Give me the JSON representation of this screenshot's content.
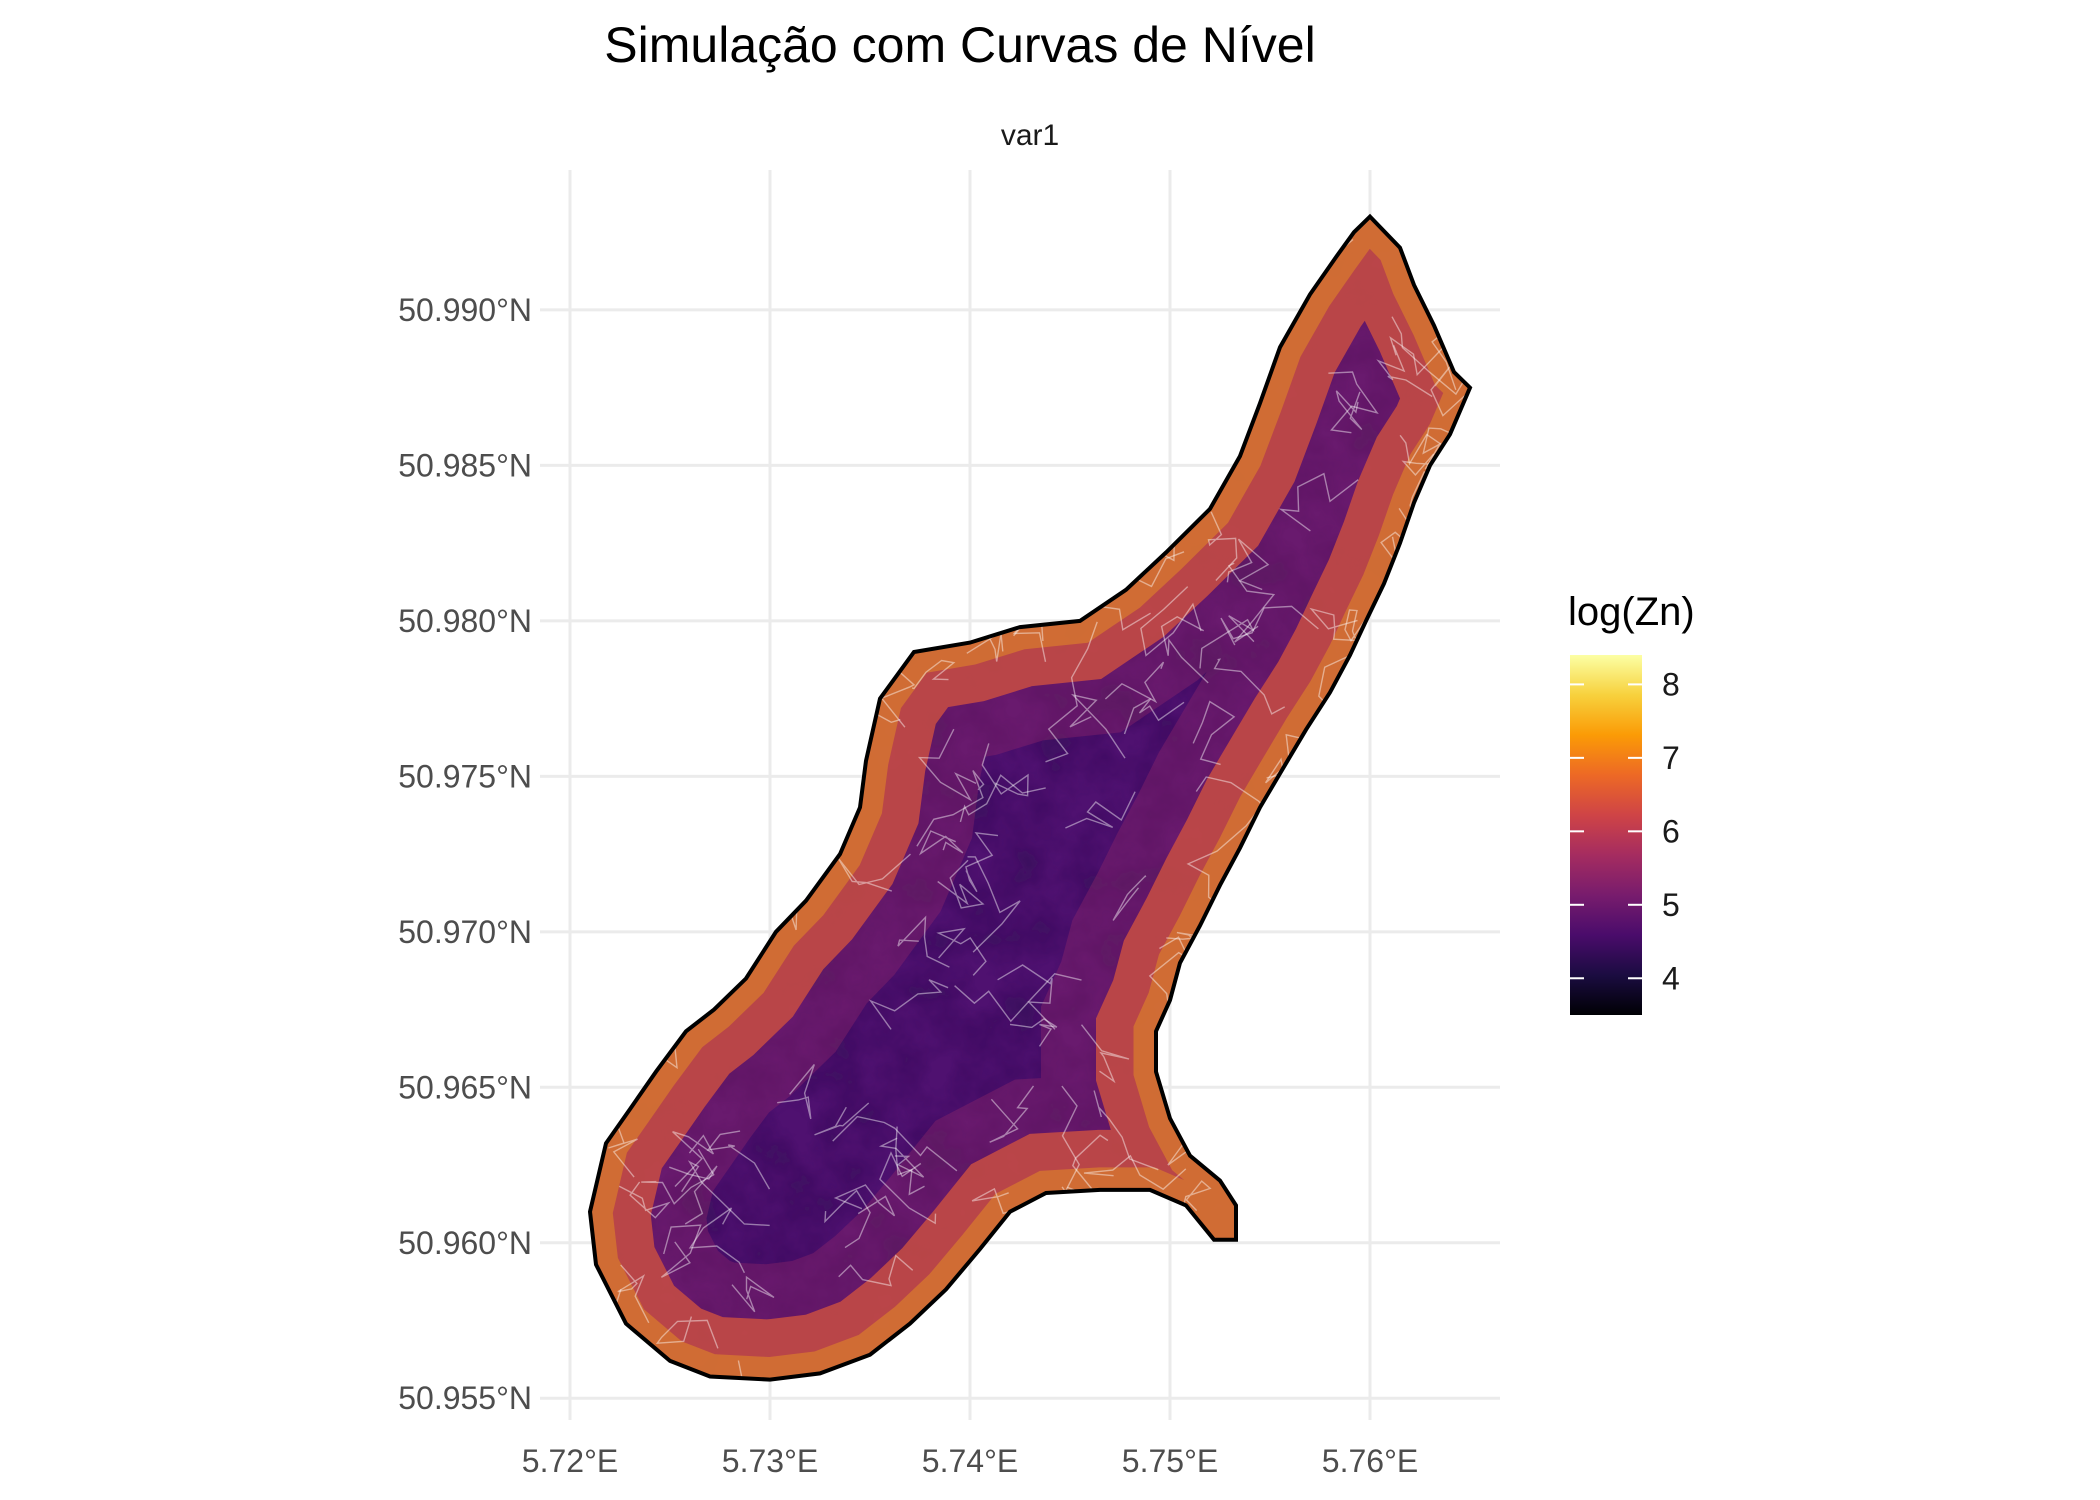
{
  "chart_data": {
    "type": "heatmap",
    "title": "Simulação com Curvas de Nível",
    "facet_label": "var1",
    "xlabel": "",
    "ylabel": "",
    "x_ticks": [
      "5.72°E",
      "5.73°E",
      "5.74°E",
      "5.75°E",
      "5.76°E"
    ],
    "x_tick_values": [
      5.72,
      5.73,
      5.74,
      5.75,
      5.76
    ],
    "y_ticks": [
      "50.955°N",
      "50.960°N",
      "50.965°N",
      "50.970°N",
      "50.975°N",
      "50.980°N",
      "50.985°N",
      "50.990°N"
    ],
    "y_tick_values": [
      50.955,
      50.96,
      50.965,
      50.97,
      50.975,
      50.98,
      50.985,
      50.99
    ],
    "xlim": [
      5.7185,
      5.7665
    ],
    "ylim": [
      50.9543,
      50.9945
    ],
    "grid": true,
    "legend": {
      "title": "log(Zn)",
      "placement": "right",
      "ticks": [
        "8",
        "7",
        "6",
        "5",
        "4"
      ],
      "tick_values": [
        8,
        7,
        6,
        5,
        4
      ],
      "range": [
        3.5,
        8.4
      ],
      "colormap": "inferno"
    },
    "colors": {
      "stops": [
        "#000004",
        "#1b0c41",
        "#4a0c6b",
        "#781c6d",
        "#a52c60",
        "#cf4446",
        "#ed6925",
        "#fb9b06",
        "#f7d13d",
        "#fcffa4"
      ],
      "boundary": "#000000",
      "contour": "#ffffff"
    },
    "region_boundary": [
      [
        5.76,
        50.993
      ],
      [
        5.7615,
        50.992
      ],
      [
        5.7622,
        50.9908
      ],
      [
        5.7632,
        50.9895
      ],
      [
        5.7642,
        50.988
      ],
      [
        5.765,
        50.9875
      ],
      [
        5.764,
        50.986
      ],
      [
        5.763,
        50.985
      ],
      [
        5.7622,
        50.9838
      ],
      [
        5.7615,
        50.9825
      ],
      [
        5.7607,
        50.9812
      ],
      [
        5.7598,
        50.98
      ],
      [
        5.759,
        50.9789
      ],
      [
        5.758,
        50.9777
      ],
      [
        5.7568,
        50.9765
      ],
      [
        5.7556,
        50.9752
      ],
      [
        5.7545,
        50.974
      ],
      [
        5.7535,
        50.9727
      ],
      [
        5.7525,
        50.9715
      ],
      [
        5.7515,
        50.9702
      ],
      [
        5.7505,
        50.969
      ],
      [
        5.75,
        50.9678
      ],
      [
        5.7493,
        50.9668
      ],
      [
        5.7493,
        50.9655
      ],
      [
        5.75,
        50.964
      ],
      [
        5.751,
        50.9628
      ],
      [
        5.7525,
        50.962
      ],
      [
        5.7533,
        50.9612
      ],
      [
        5.7533,
        50.9601
      ],
      [
        5.7522,
        50.9601
      ],
      [
        5.7508,
        50.9612
      ],
      [
        5.749,
        50.9617
      ],
      [
        5.7465,
        50.9617
      ],
      [
        5.7438,
        50.9616
      ],
      [
        5.742,
        50.961
      ],
      [
        5.7405,
        50.9598
      ],
      [
        5.7388,
        50.9585
      ],
      [
        5.737,
        50.9574
      ],
      [
        5.735,
        50.9564
      ],
      [
        5.7325,
        50.9558
      ],
      [
        5.73,
        50.9556
      ],
      [
        5.727,
        50.9557
      ],
      [
        5.725,
        50.9562
      ],
      [
        5.7228,
        50.9574
      ],
      [
        5.7213,
        50.9593
      ],
      [
        5.721,
        50.961
      ],
      [
        5.7218,
        50.9632
      ],
      [
        5.723,
        50.9643
      ],
      [
        5.7243,
        50.9655
      ],
      [
        5.7258,
        50.9668
      ],
      [
        5.7272,
        50.9675
      ],
      [
        5.7288,
        50.9685
      ],
      [
        5.7303,
        50.97
      ],
      [
        5.7318,
        50.971
      ],
      [
        5.7335,
        50.9725
      ],
      [
        5.7345,
        50.974
      ],
      [
        5.7348,
        50.9755
      ],
      [
        5.7355,
        50.9775
      ],
      [
        5.7372,
        50.979
      ],
      [
        5.74,
        50.9793
      ],
      [
        5.7425,
        50.9798
      ],
      [
        5.7455,
        50.98
      ],
      [
        5.7478,
        50.981
      ],
      [
        5.7498,
        50.9822
      ],
      [
        5.752,
        50.9836
      ],
      [
        5.7535,
        50.9853
      ],
      [
        5.7545,
        50.987
      ],
      [
        5.7555,
        50.9888
      ],
      [
        5.757,
        50.9905
      ],
      [
        5.7583,
        50.9917
      ],
      [
        5.7592,
        50.9925
      ]
    ]
  }
}
